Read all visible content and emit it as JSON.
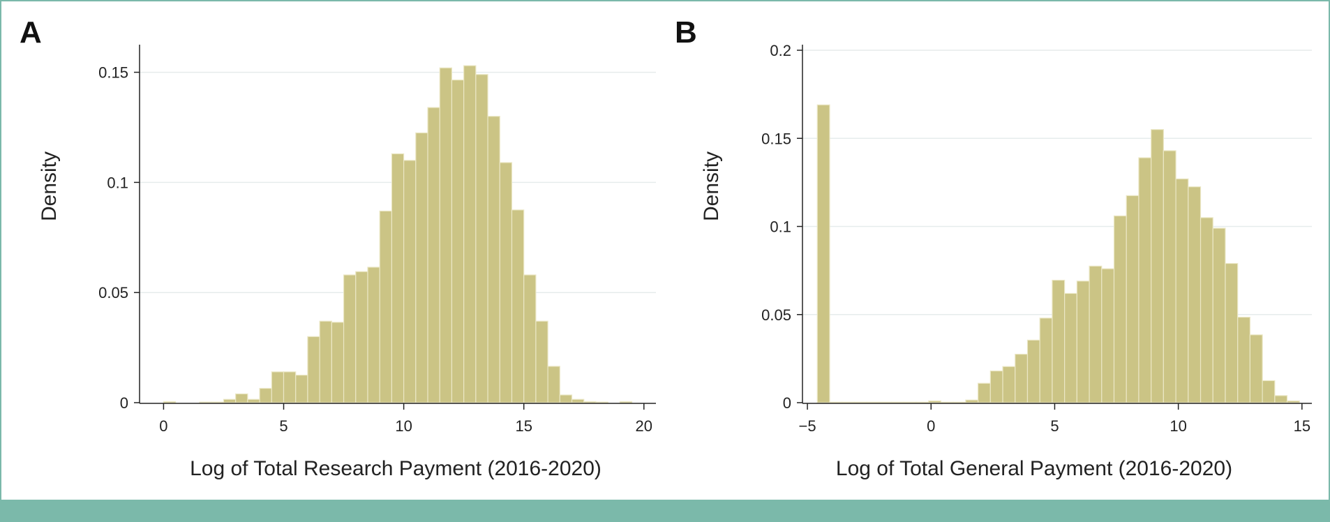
{
  "panels": [
    {
      "letter": "A"
    },
    {
      "letter": "B"
    }
  ],
  "colors": {
    "bar_fill": "#cbc485",
    "bar_stroke": "#ebe7c5",
    "axis": "#222222",
    "grid": "#e6ecec",
    "frame": "#7bb9aa"
  },
  "chart_data": [
    {
      "type": "bar",
      "subtype": "histogram",
      "xlabel": "Log of Total Research Payment (2016-2020)",
      "ylabel": "Density",
      "xlim": [
        -1,
        20.5
      ],
      "ylim": [
        0,
        0.16
      ],
      "xticks": [
        0,
        5,
        10,
        15,
        20
      ],
      "xtick_labels": [
        "0",
        "5",
        "10",
        "15",
        "20"
      ],
      "yticks": [
        0,
        0.05,
        0.1,
        0.15
      ],
      "ytick_labels": [
        "0",
        "0.05",
        "0.1",
        "0.15"
      ],
      "grid": true,
      "bin_width": 0.5,
      "bin_starts": [
        0,
        0.5,
        1,
        1.5,
        2,
        2.5,
        3,
        3.5,
        4,
        4.5,
        5,
        5.5,
        6,
        6.5,
        7,
        7.5,
        8,
        8.5,
        9,
        9.5,
        10,
        10.5,
        11,
        11.5,
        12,
        12.5,
        13,
        13.5,
        14,
        14.5,
        15,
        15.5,
        16,
        16.5,
        17,
        17.5,
        18,
        18.5,
        19
      ],
      "values": [
        0.0005,
        0,
        0,
        0.0003,
        0.0003,
        0.0015,
        0.004,
        0.0015,
        0.0065,
        0.014,
        0.014,
        0.0125,
        0.03,
        0.037,
        0.0365,
        0.058,
        0.0595,
        0.0615,
        0.087,
        0.113,
        0.11,
        0.1225,
        0.134,
        0.152,
        0.1465,
        0.153,
        0.149,
        0.13,
        0.109,
        0.0875,
        0.058,
        0.037,
        0.0165,
        0.0035,
        0.0015,
        0.0005,
        0.0003,
        0,
        0.0005
      ]
    },
    {
      "type": "bar",
      "subtype": "histogram",
      "xlabel": "Log of Total General Payment (2016-2020)",
      "ylabel": "Density",
      "xlim": [
        -5.2,
        15.4
      ],
      "ylim": [
        0,
        0.2
      ],
      "xticks": [
        -5,
        0,
        5,
        10,
        15
      ],
      "xtick_labels": [
        "−5",
        "0",
        "5",
        "10",
        "15"
      ],
      "yticks": [
        0,
        0.05,
        0.1,
        0.15,
        0.2
      ],
      "ytick_labels": [
        "0",
        "0.05",
        "0.1",
        "0.15",
        "0.2"
      ],
      "grid": true,
      "bin_width": 0.5,
      "bin_starts": [
        -4.6,
        -4.1,
        -3.6,
        -3.1,
        -2.6,
        -2.1,
        -1.6,
        -1.1,
        -0.6,
        -0.1,
        0.4,
        0.9,
        1.4,
        1.9,
        2.4,
        2.9,
        3.4,
        3.9,
        4.4,
        4.9,
        5.4,
        5.9,
        6.4,
        6.9,
        7.4,
        7.9,
        8.4,
        8.9,
        9.4,
        9.9,
        10.4,
        10.9,
        11.4,
        11.9,
        12.4,
        12.9,
        13.4,
        13.9,
        14.4
      ],
      "values": [
        0.169,
        0.0003,
        0.0003,
        0.0003,
        0.0003,
        0.0003,
        0.0003,
        0.0003,
        0.0003,
        0.001,
        0.0003,
        0.0003,
        0.0015,
        0.011,
        0.018,
        0.0205,
        0.0275,
        0.0355,
        0.048,
        0.0695,
        0.062,
        0.069,
        0.0775,
        0.076,
        0.106,
        0.1175,
        0.139,
        0.155,
        0.143,
        0.127,
        0.1225,
        0.105,
        0.099,
        0.079,
        0.0485,
        0.0385,
        0.0125,
        0.004,
        0.001
      ]
    }
  ]
}
